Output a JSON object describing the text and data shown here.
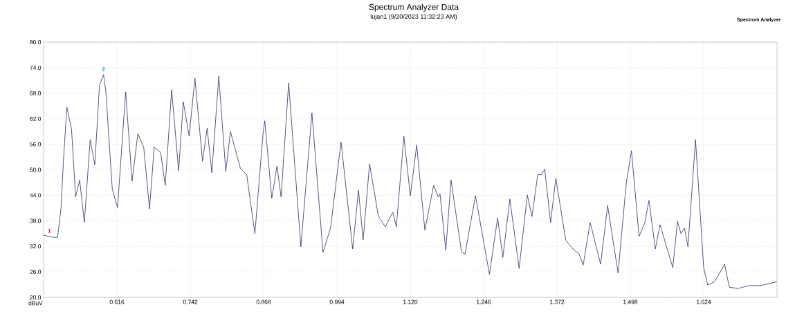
{
  "chart_data": {
    "type": "line",
    "title": "Spectrum Analyzer Data",
    "subtitle": "lujan1 (9/20/2023 11:32:23 AM)",
    "ylabel": "dBuV",
    "annotations": [
      "Spectrum Analyzer",
      {
        "text": "1",
        "x": 0.5,
        "y": 35
      },
      {
        "text": "2",
        "x": 0.593,
        "y": 73
      }
    ],
    "xlim": [
      0.49,
      1.75
    ],
    "xticks": [
      0.616,
      0.742,
      0.868,
      0.994,
      {
        "value": 1.12,
        "label": "1.120"
      },
      1.246,
      1.372,
      1.498,
      1.624
    ],
    "ylim": [
      20,
      80
    ],
    "yticks": [
      {
        "value": 20,
        "label": "20.0"
      },
      {
        "value": 26,
        "label": "26.0"
      },
      {
        "value": 32,
        "label": "32.0"
      },
      {
        "value": 38,
        "label": "38.0"
      },
      {
        "value": 44,
        "label": "44.0"
      },
      {
        "value": 50,
        "label": "50.0"
      },
      {
        "value": 56,
        "label": "56.0"
      },
      {
        "value": 62,
        "label": "62.0"
      },
      {
        "value": 68,
        "label": "68.0"
      },
      {
        "value": 74,
        "label": "74.0"
      },
      {
        "value": 80,
        "label": "80.0"
      }
    ],
    "grid": true,
    "legend": false,
    "marker": "none",
    "line_style": "solid",
    "series": [
      {
        "color": "#2b2b6b",
        "x": [
          0.49,
          0.508,
          0.514,
          0.52,
          0.524,
          0.53,
          0.538,
          0.545,
          0.552,
          0.56,
          0.57,
          0.578,
          0.586,
          0.593,
          0.597,
          0.608,
          0.617,
          0.631,
          0.642,
          0.652,
          0.662,
          0.672,
          0.68,
          0.691,
          0.699,
          0.71,
          0.722,
          0.73,
          0.74,
          0.75,
          0.763,
          0.771,
          0.779,
          0.791,
          0.803,
          0.811,
          0.828,
          0.839,
          0.853,
          0.867,
          0.87,
          0.882,
          0.891,
          0.898,
          0.911,
          0.932,
          0.951,
          0.97,
          0.983,
          1.001,
          1.021,
          1.031,
          1.039,
          1.05,
          1.065,
          1.077,
          1.09,
          1.096,
          1.109,
          1.12,
          1.131,
          1.145,
          1.16,
          1.168,
          1.171,
          1.181,
          1.19,
          1.208,
          1.214,
          1.232,
          1.256,
          1.27,
          1.279,
          1.291,
          1.307,
          1.321,
          1.329,
          1.339,
          1.345,
          1.351,
          1.361,
          1.37,
          1.387,
          1.399,
          1.41,
          1.417,
          1.429,
          1.447,
          1.459,
          1.477,
          1.491,
          1.5,
          1.513,
          1.523,
          1.53,
          1.541,
          1.549,
          1.559,
          1.571,
          1.579,
          1.585,
          1.591,
          1.597,
          1.61,
          1.624,
          1.631,
          1.643,
          1.66,
          1.668,
          1.683,
          1.702,
          1.723,
          1.75
        ],
        "values": [
          34.6,
          34.1,
          34.1,
          41.1,
          52.0,
          64.7,
          59.5,
          43.6,
          47.6,
          37.6,
          57.1,
          51.2,
          69.9,
          72.4,
          68.3,
          45.5,
          41.1,
          68.3,
          47.3,
          58.5,
          55.3,
          40.8,
          55.3,
          54.1,
          46.3,
          68.8,
          49.8,
          66.0,
          57.9,
          71.5,
          52.0,
          59.8,
          49.3,
          72.0,
          49.6,
          59.0,
          50.4,
          48.8,
          35.0,
          58.5,
          61.5,
          43.3,
          50.9,
          43.6,
          70.4,
          31.9,
          63.4,
          30.6,
          36.3,
          56.6,
          31.4,
          45.2,
          33.5,
          51.4,
          39.2,
          36.6,
          40.0,
          36.6,
          57.9,
          43.9,
          55.8,
          35.8,
          46.3,
          43.6,
          44.4,
          31.1,
          47.6,
          30.6,
          30.2,
          43.9,
          25.4,
          38.7,
          29.4,
          43.1,
          26.8,
          44.1,
          39.0,
          48.9,
          48.8,
          50.1,
          37.6,
          48.0,
          33.5,
          31.4,
          30.2,
          27.6,
          37.6,
          27.8,
          41.6,
          25.7,
          46.8,
          54.5,
          34.3,
          37.6,
          42.8,
          31.4,
          37.1,
          32.5,
          27.0,
          37.9,
          35.0,
          36.3,
          31.9,
          57.1,
          27.0,
          22.9,
          23.7,
          27.8,
          22.4,
          22.1,
          22.8,
          22.8,
          23.7
        ]
      }
    ]
  }
}
